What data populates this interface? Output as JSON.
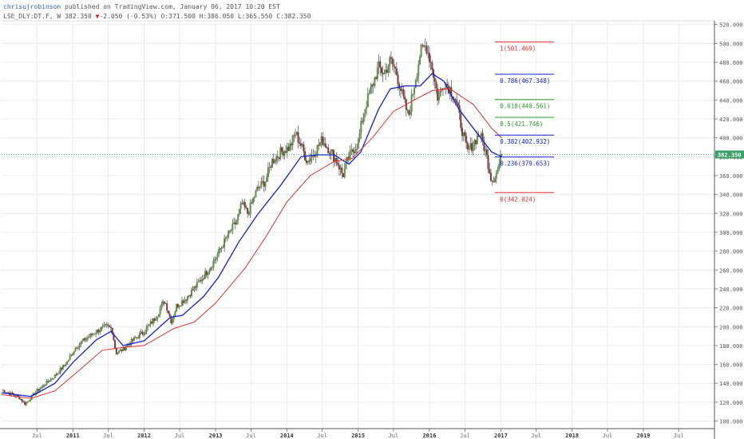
{
  "header": {
    "author": "chrisujrobinson",
    "published": " published on TradingView.com, January 06, 2017 10:20 EST",
    "symbol": "LSE_DLY:DT.F, W",
    "last": "382.350",
    "change": "-2.050 (-0.53%)",
    "open": "O:371.500",
    "high": "H:386.050",
    "low": "L:365.550",
    "close": "C:382.350"
  },
  "chart_data": {
    "type": "candlestick",
    "title": "LSE_DLY:DT.F, W",
    "x_range": [
      "2010-01-01",
      "2019-12-31"
    ],
    "y_range": [
      92,
      524
    ],
    "y_ticks": [
      100,
      120,
      140,
      160,
      180,
      200,
      220,
      240,
      260,
      280,
      300,
      320,
      340,
      360,
      380,
      400,
      420,
      440,
      460,
      480,
      500,
      520
    ],
    "y_tick_labels": [
      "100.000",
      "120.000",
      "140.000",
      "160.000",
      "180.000",
      "200.000",
      "220.000",
      "240.000",
      "260.000",
      "280.000",
      "300.000",
      "320.000",
      "340.000",
      "360.000",
      "380.000",
      "400.000",
      "420.000",
      "440.000",
      "460.000",
      "480.000",
      "500.000",
      "520.000"
    ],
    "x_ticks": [
      {
        "date": "2010-07-01",
        "label": "Jul"
      },
      {
        "date": "2011-01-01",
        "label": "2011"
      },
      {
        "date": "2011-07-01",
        "label": "Jul"
      },
      {
        "date": "2012-01-01",
        "label": "2012"
      },
      {
        "date": "2012-07-01",
        "label": "Jul"
      },
      {
        "date": "2013-01-01",
        "label": "2013"
      },
      {
        "date": "2013-07-01",
        "label": "Jul"
      },
      {
        "date": "2014-01-01",
        "label": "2014"
      },
      {
        "date": "2014-07-01",
        "label": "Jul"
      },
      {
        "date": "2015-01-01",
        "label": "2015"
      },
      {
        "date": "2015-07-01",
        "label": "Jul"
      },
      {
        "date": "2016-01-01",
        "label": "2016"
      },
      {
        "date": "2016-07-01",
        "label": "Jul"
      },
      {
        "date": "2017-01-01",
        "label": "2017"
      },
      {
        "date": "2017-07-01",
        "label": "Jul"
      },
      {
        "date": "2018-01-01",
        "label": "2018"
      },
      {
        "date": "2018-07-01",
        "label": "Jul"
      },
      {
        "date": "2019-01-01",
        "label": "2019"
      },
      {
        "date": "2019-07-01",
        "label": "Jul"
      }
    ],
    "grid": true,
    "last_price": 382.35,
    "last_price_label": "382.350",
    "price_path": [
      [
        "2010-01-01",
        133
      ],
      [
        "2010-04-01",
        125
      ],
      [
        "2010-05-01",
        118
      ],
      [
        "2010-07-01",
        132
      ],
      [
        "2010-10-01",
        148
      ],
      [
        "2010-12-01",
        162
      ],
      [
        "2011-01-15",
        178
      ],
      [
        "2011-03-01",
        186
      ],
      [
        "2011-05-01",
        195
      ],
      [
        "2011-06-15",
        200
      ],
      [
        "2011-07-20",
        198
      ],
      [
        "2011-08-10",
        172
      ],
      [
        "2011-09-15",
        176
      ],
      [
        "2011-11-01",
        185
      ],
      [
        "2012-01-01",
        195
      ],
      [
        "2012-03-01",
        210
      ],
      [
        "2012-04-15",
        228
      ],
      [
        "2012-05-20",
        205
      ],
      [
        "2012-06-15",
        222
      ],
      [
        "2012-08-01",
        230
      ],
      [
        "2012-10-01",
        245
      ],
      [
        "2012-12-01",
        262
      ],
      [
        "2013-01-15",
        278
      ],
      [
        "2013-02-15",
        290
      ],
      [
        "2013-03-15",
        300
      ],
      [
        "2013-04-15",
        310
      ],
      [
        "2013-05-15",
        330
      ],
      [
        "2013-06-15",
        320
      ],
      [
        "2013-08-01",
        345
      ],
      [
        "2013-09-15",
        355
      ],
      [
        "2013-10-15",
        375
      ],
      [
        "2013-12-01",
        385
      ],
      [
        "2014-01-15",
        390
      ],
      [
        "2014-02-15",
        405
      ],
      [
        "2014-03-15",
        392
      ],
      [
        "2014-04-15",
        375
      ],
      [
        "2014-06-01",
        388
      ],
      [
        "2014-07-01",
        398
      ],
      [
        "2014-08-15",
        385
      ],
      [
        "2014-09-15",
        375
      ],
      [
        "2014-10-15",
        360
      ],
      [
        "2014-11-15",
        380
      ],
      [
        "2015-01-01",
        395
      ],
      [
        "2015-02-01",
        430
      ],
      [
        "2015-03-15",
        455
      ],
      [
        "2015-04-15",
        475
      ],
      [
        "2015-05-15",
        468
      ],
      [
        "2015-06-15",
        482
      ],
      [
        "2015-07-15",
        470
      ],
      [
        "2015-08-15",
        445
      ],
      [
        "2015-09-15",
        422
      ],
      [
        "2015-10-15",
        455
      ],
      [
        "2015-11-15",
        490
      ],
      [
        "2015-12-15",
        498
      ],
      [
        "2016-01-15",
        475
      ],
      [
        "2016-02-15",
        440
      ],
      [
        "2016-03-15",
        460
      ],
      [
        "2016-04-15",
        452
      ],
      [
        "2016-05-15",
        440
      ],
      [
        "2016-06-20",
        405
      ],
      [
        "2016-07-15",
        385
      ],
      [
        "2016-08-15",
        395
      ],
      [
        "2016-09-15",
        405
      ],
      [
        "2016-10-15",
        385
      ],
      [
        "2016-11-15",
        355
      ],
      [
        "2016-12-10",
        362
      ],
      [
        "2017-01-06",
        382.35
      ]
    ],
    "series": [
      {
        "color": "#1422d6",
        "values": [
          [
            "2010-01-01",
            130
          ],
          [
            "2010-06-01",
            126
          ],
          [
            "2010-10-01",
            140
          ],
          [
            "2011-01-01",
            162
          ],
          [
            "2011-05-01",
            186
          ],
          [
            "2011-07-15",
            195
          ],
          [
            "2011-09-15",
            180
          ],
          [
            "2012-01-01",
            185
          ],
          [
            "2012-05-15",
            210
          ],
          [
            "2012-07-15",
            212
          ],
          [
            "2012-11-01",
            232
          ],
          [
            "2013-01-15",
            252
          ],
          [
            "2013-05-01",
            290
          ],
          [
            "2013-08-01",
            318
          ],
          [
            "2013-12-01",
            350
          ],
          [
            "2014-03-15",
            380
          ],
          [
            "2014-06-01",
            382
          ],
          [
            "2014-09-01",
            382
          ],
          [
            "2014-11-15",
            372
          ],
          [
            "2015-01-15",
            385
          ],
          [
            "2015-04-15",
            430
          ],
          [
            "2015-06-15",
            452
          ],
          [
            "2015-09-01",
            455
          ],
          [
            "2015-11-15",
            455
          ],
          [
            "2016-01-15",
            468
          ],
          [
            "2016-03-15",
            460
          ],
          [
            "2016-06-01",
            430
          ],
          [
            "2016-09-01",
            405
          ],
          [
            "2016-11-15",
            385
          ],
          [
            "2017-01-06",
            380
          ]
        ]
      },
      {
        "color": "#e03030",
        "values": [
          [
            "2010-01-01",
            128
          ],
          [
            "2010-06-01",
            124
          ],
          [
            "2010-10-01",
            132
          ],
          [
            "2011-01-01",
            148
          ],
          [
            "2011-06-01",
            175
          ],
          [
            "2011-09-15",
            178
          ],
          [
            "2012-01-01",
            180
          ],
          [
            "2012-06-01",
            198
          ],
          [
            "2012-09-15",
            205
          ],
          [
            "2013-01-01",
            225
          ],
          [
            "2013-06-01",
            262
          ],
          [
            "2013-09-15",
            295
          ],
          [
            "2014-01-01",
            332
          ],
          [
            "2014-05-01",
            360
          ],
          [
            "2014-09-01",
            375
          ],
          [
            "2014-12-01",
            378
          ],
          [
            "2015-03-15",
            400
          ],
          [
            "2015-07-01",
            428
          ],
          [
            "2015-10-15",
            440
          ],
          [
            "2016-01-15",
            450
          ],
          [
            "2016-04-15",
            452
          ],
          [
            "2016-08-15",
            435
          ],
          [
            "2016-11-15",
            410
          ],
          [
            "2017-01-06",
            400
          ]
        ]
      }
    ],
    "fib_levels": [
      {
        "label": "1(501.469)",
        "value": 501.469,
        "color": "#e03030"
      },
      {
        "label": "0.786(467.348)",
        "value": 467.348,
        "color": "#1422d6"
      },
      {
        "label": "0.618(440.561)",
        "value": 440.561,
        "color": "#2a9a2a"
      },
      {
        "label": "0.5(421.746)",
        "value": 421.746,
        "color": "#2a9a2a"
      },
      {
        "label": "0.382(402.932)",
        "value": 402.932,
        "color": "#1422d6"
      },
      {
        "label": "0.236(379.653)",
        "value": 379.653,
        "color": "#1422d6"
      },
      {
        "label": "0(342.024)",
        "value": 342.024,
        "color": "#e03030"
      }
    ],
    "fib_x_range": [
      "2016-12-01",
      "2017-10-01"
    ]
  }
}
